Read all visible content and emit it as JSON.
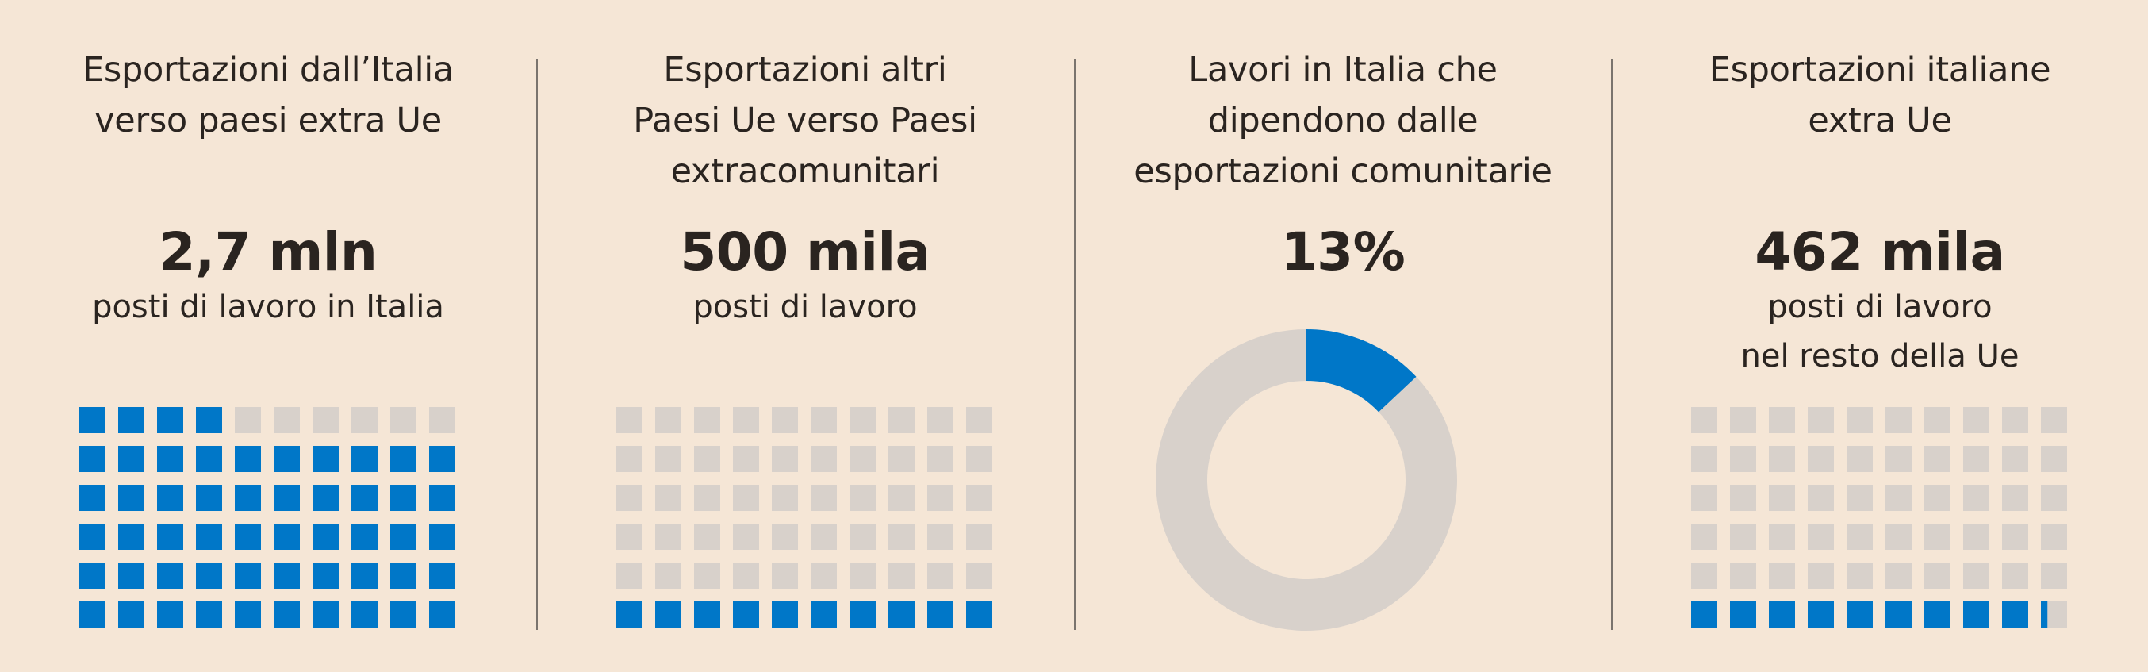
{
  "colors": {
    "background": "#f5e6d6",
    "filled": "#0077c8",
    "empty": "#d8d1cb",
    "text": "#2a2420"
  },
  "panels": [
    {
      "title": "Esportazioni dall’Italia\nverso paesi extra Ue",
      "value": "2,7 mln",
      "subtitle": "posti di lavoro in Italia"
    },
    {
      "title": "Esportazioni altri\nPaesi Ue verso Paesi\nextracomunitari",
      "value": "500 mila",
      "subtitle": "posti di lavoro"
    },
    {
      "title": "Lavori in Italia che\ndipendono dalle\nesportazioni comunitarie",
      "value": "13%",
      "subtitle": ""
    },
    {
      "title": "Esportazioni italiane\nextra Ue",
      "value": "462 mila",
      "subtitle": "posti di lavoro\nnel resto della Ue"
    }
  ],
  "chart_data": [
    {
      "type": "waffle",
      "grid": {
        "rows": 6,
        "cols": 10
      },
      "filled_units": 54,
      "fill_from": "bottom"
    },
    {
      "type": "waffle",
      "grid": {
        "rows": 6,
        "cols": 10
      },
      "filled_units": 10,
      "fill_from": "bottom"
    },
    {
      "type": "pie",
      "style": "donut",
      "slices": [
        {
          "value": 13,
          "color": "#0077c8"
        },
        {
          "value": 87,
          "color": "#d8d1cb"
        }
      ]
    },
    {
      "type": "waffle",
      "grid": {
        "rows": 6,
        "cols": 10
      },
      "filled_units": 9.25,
      "fill_from": "bottom"
    }
  ]
}
